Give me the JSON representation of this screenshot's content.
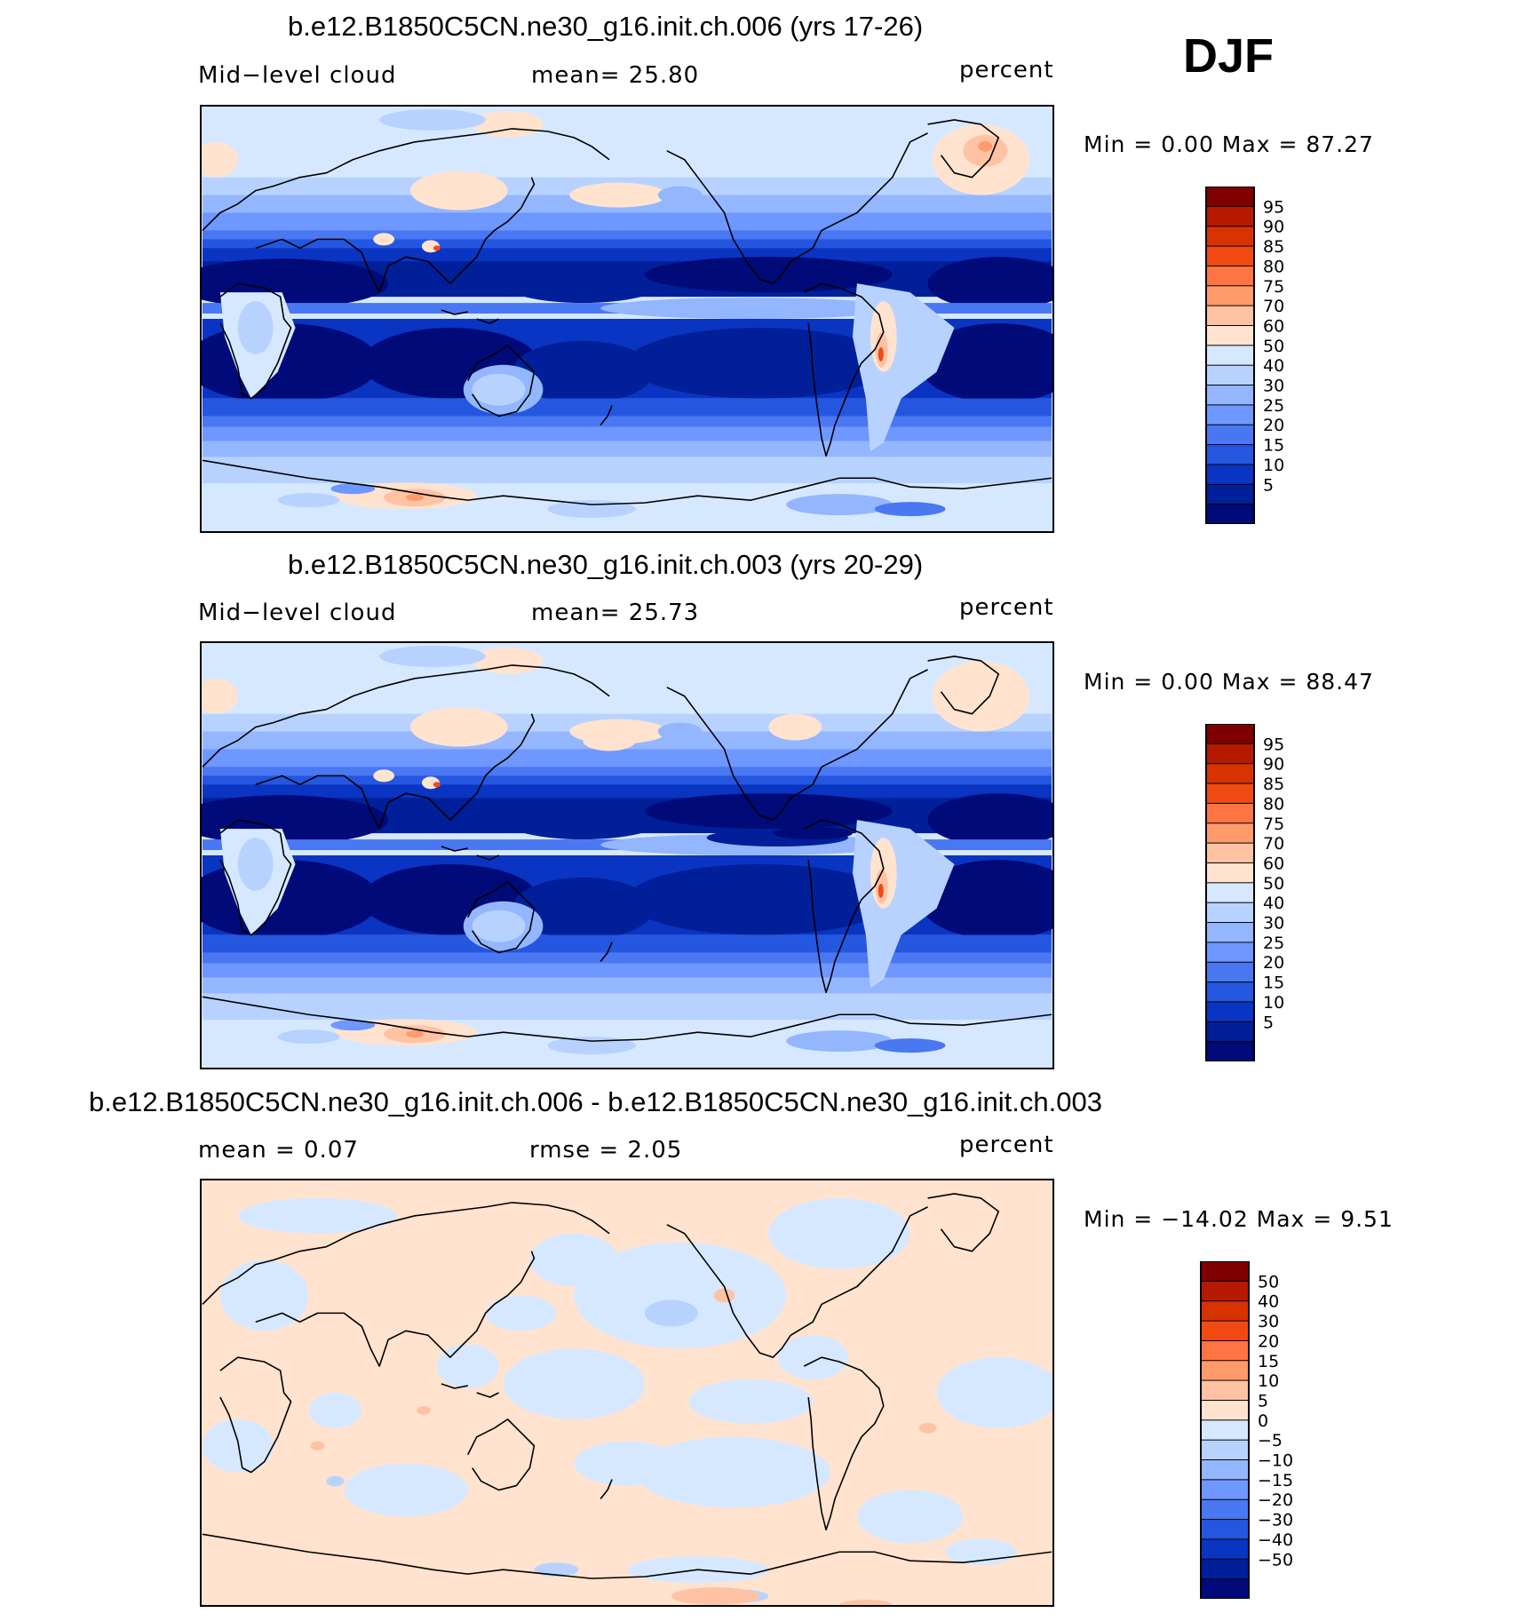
{
  "season": "DJF",
  "panels": [
    {
      "title": "b.e12.B1850C5CN.ne30_g16.init.ch.006 (yrs 17-26)",
      "left_text": "Mid−level cloud",
      "center_text": "mean=   25.80",
      "units": "percent",
      "minmax": "Min =    0.00 Max =   87.27",
      "colorbar_labels": [
        "95",
        "90",
        "85",
        "80",
        "75",
        "70",
        "60",
        "50",
        "40",
        "30",
        "25",
        "20",
        "15",
        "10",
        "5"
      ],
      "variant": "a"
    },
    {
      "title": "b.e12.B1850C5CN.ne30_g16.init.ch.003 (yrs 20-29)",
      "left_text": "Mid−level cloud",
      "center_text": "mean=   25.73",
      "units": "percent",
      "minmax": "Min =    0.00 Max =   88.47",
      "colorbar_labels": [
        "95",
        "90",
        "85",
        "80",
        "75",
        "70",
        "60",
        "50",
        "40",
        "30",
        "25",
        "20",
        "15",
        "10",
        "5"
      ],
      "variant": "b"
    },
    {
      "title": "b.e12.B1850C5CN.ne30_g16.init.ch.006 - b.e12.B1850C5CN.ne30_g16.init.ch.003",
      "left_text": "mean =    0.07",
      "center_text": "rmse =    2.05",
      "units": "percent",
      "minmax": "Min = −14.02 Max =    9.51",
      "colorbar_labels": [
        "50",
        "40",
        "30",
        "20",
        "15",
        "10",
        "5",
        "0",
        "−5",
        "−10",
        "−15",
        "−20",
        "−30",
        "−40",
        "−50"
      ],
      "variant": "diff"
    }
  ],
  "colorbar_colors": [
    "#800000",
    "#b51a00",
    "#d83200",
    "#f04a12",
    "#ff7442",
    "#ff9a6b",
    "#ffc2a3",
    "#ffe3cf",
    "#d6e8ff",
    "#b8d2ff",
    "#94b6ff",
    "#6e97ff",
    "#4a77f2",
    "#2456e0",
    "#0a34c2",
    "#001f99",
    "#000a78"
  ],
  "icons": {
    "map_features": "coastline-icon"
  }
}
